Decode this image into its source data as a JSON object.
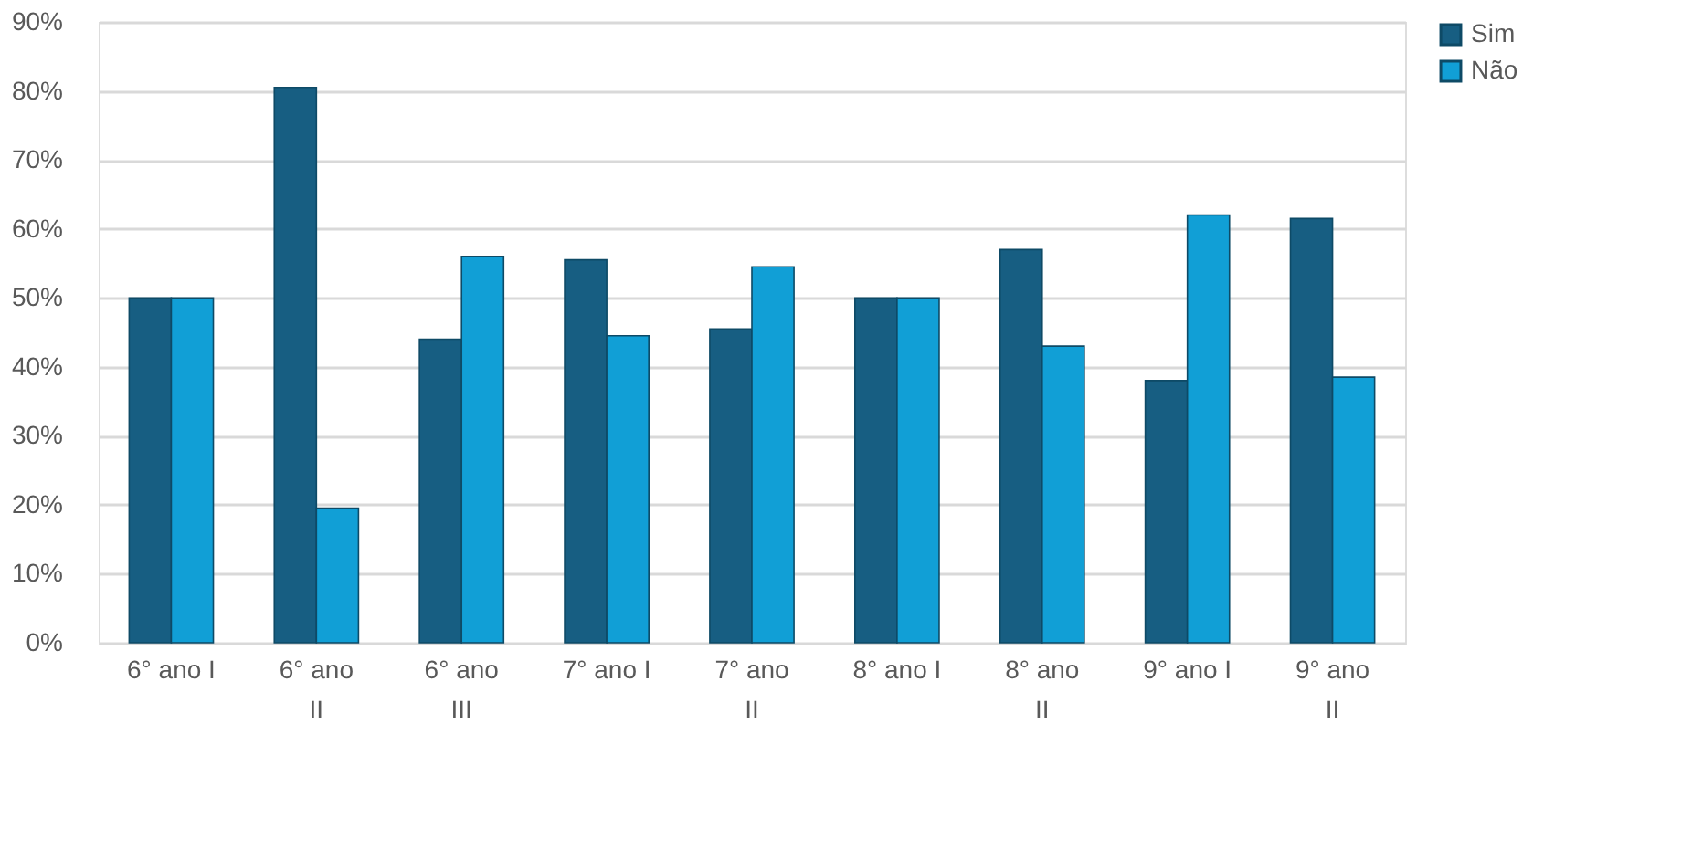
{
  "chart_data": {
    "type": "bar",
    "categories": [
      "6° ano I",
      "6° ano II",
      "6° ano III",
      "7° ano I",
      "7° ano II",
      "8° ano I",
      "8° ano II",
      "9° ano I",
      "9° ano II"
    ],
    "series": [
      {
        "name": "Sim",
        "color": "#175e82",
        "values": [
          50,
          80.5,
          44,
          55.5,
          45.5,
          50,
          57,
          38,
          61.5
        ]
      },
      {
        "name": "Não",
        "color": "#119fd6",
        "values": [
          50,
          19.5,
          56,
          44.5,
          54.5,
          50,
          43,
          62,
          38.5
        ]
      }
    ],
    "ylim": [
      0,
      90
    ],
    "yticks": [
      {
        "value": 0,
        "label": "0%"
      },
      {
        "value": 10,
        "label": "10%"
      },
      {
        "value": 20,
        "label": "20%"
      },
      {
        "value": 30,
        "label": "30%"
      },
      {
        "value": 40,
        "label": "40%"
      },
      {
        "value": 50,
        "label": "50%"
      },
      {
        "value": 60,
        "label": "60%"
      },
      {
        "value": 70,
        "label": "70%"
      },
      {
        "value": 80,
        "label": "80%"
      },
      {
        "value": 90,
        "label": "90%"
      }
    ],
    "grid": "y",
    "legend": "right"
  }
}
